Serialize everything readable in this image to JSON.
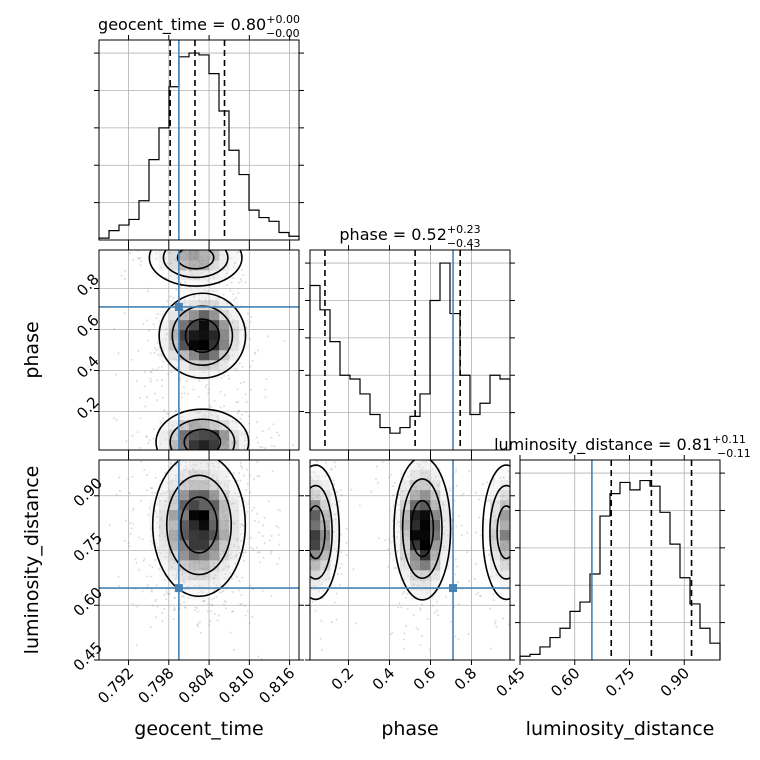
{
  "chart_data": {
    "type": "corner",
    "parameters": [
      "geocent_time",
      "phase",
      "luminosity_distance"
    ],
    "axis_labels": {
      "x": [
        "geocent_time",
        "phase",
        "luminosity_distance"
      ],
      "y_row1": "phase",
      "y_row2": "luminosity_distance"
    },
    "titles": [
      {
        "name": "geocent_time",
        "median": "0.80",
        "plus": "+0.00",
        "minus": "−0.00"
      },
      {
        "name": "phase",
        "median": "0.52",
        "plus": "+0.23",
        "minus": "−0.43"
      },
      {
        "name": "luminosity_distance",
        "median": "0.81",
        "plus": "+0.11",
        "minus": "−0.11"
      }
    ],
    "ranges": {
      "geocent_time": [
        0.7876,
        0.8174
      ],
      "phase": [
        0.012,
        0.988
      ],
      "luminosity_distance": [
        0.45,
        0.998
      ]
    },
    "ticks": {
      "geocent_time": [
        0.792,
        0.798,
        0.804,
        0.81,
        0.816
      ],
      "phase": [
        0.2,
        0.4,
        0.6,
        0.8
      ],
      "luminosity_distance": [
        0.45,
        0.6,
        0.75,
        0.9
      ]
    },
    "tick_labels": {
      "geocent_time": [
        "0.792",
        "0.798",
        "0.804",
        "0.810",
        "0.816"
      ],
      "phase": [
        "0.2",
        "0.4",
        "0.6",
        "0.8"
      ],
      "luminosity_distance": [
        "0.45",
        "0.60",
        "0.75",
        "0.90"
      ]
    },
    "injection": {
      "geocent_time": 0.7995,
      "phase": 0.71,
      "luminosity_distance": 0.647
    },
    "quantiles": {
      "geocent_time": [
        0.7982,
        0.8019,
        0.8063
      ],
      "phase": [
        0.085,
        0.525,
        0.745
      ],
      "luminosity_distance": [
        0.7,
        0.81,
        0.92
      ]
    },
    "histograms": {
      "geocent_time": [
        0.01,
        0.05,
        0.08,
        0.11,
        0.21,
        0.43,
        0.6,
        0.82,
        0.98,
        1.0,
        0.99,
        0.89,
        0.69,
        0.48,
        0.35,
        0.16,
        0.12,
        0.1,
        0.04,
        0.02
      ],
      "phase": [
        0.88,
        0.75,
        0.58,
        0.4,
        0.38,
        0.3,
        0.19,
        0.12,
        0.09,
        0.12,
        0.18,
        0.3,
        0.8,
        1.0,
        0.73,
        0.4,
        0.19,
        0.25,
        0.4,
        0.38
      ],
      "luminosity_distance": [
        0.02,
        0.03,
        0.07,
        0.12,
        0.17,
        0.26,
        0.31,
        0.46,
        0.77,
        0.89,
        0.95,
        0.91,
        0.96,
        0.93,
        0.79,
        0.62,
        0.44,
        0.3,
        0.17,
        0.09
      ]
    },
    "grid": true,
    "colors": {
      "truth": "#4682b4",
      "ink": "#000000",
      "grid": "#b0b0b0",
      "scatter": "#9a9a9a"
    }
  }
}
